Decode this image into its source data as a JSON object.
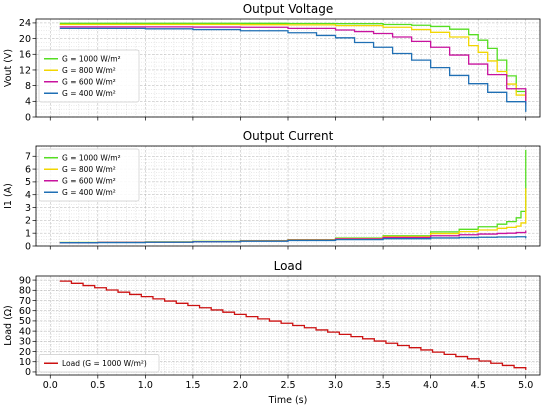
{
  "chart_data": [
    {
      "type": "line",
      "title": "Output Voltage",
      "xlabel": "",
      "ylabel": "Vout (V)",
      "xlim": [
        -0.15,
        5.15
      ],
      "ylim": [
        0,
        25
      ],
      "xticks": [
        0.0,
        0.5,
        1.0,
        1.5,
        2.0,
        2.5,
        3.0,
        3.5,
        4.0,
        4.5,
        5.0
      ],
      "yticks": [
        0,
        4,
        8,
        12,
        16,
        20,
        24
      ],
      "ytick_labels": [
        "0",
        "4",
        "8",
        "12",
        "16",
        "20",
        "24"
      ],
      "show_xtick_labels": false,
      "grid": true,
      "legend_position": "center-left",
      "series": [
        {
          "name": "G = 1000 W/m²",
          "color": "#55dd22",
          "x": [
            0.1,
            0.5,
            1.0,
            1.5,
            2.0,
            2.5,
            3.0,
            3.5,
            3.8,
            4.0,
            4.2,
            4.4,
            4.5,
            4.6,
            4.7,
            4.8,
            4.9,
            5.0
          ],
          "y": [
            23.9,
            23.9,
            23.9,
            23.9,
            23.9,
            23.85,
            23.8,
            23.6,
            23.4,
            23.1,
            22.4,
            21.0,
            19.6,
            17.5,
            14.5,
            10.5,
            6.5,
            3.5
          ]
        },
        {
          "name": "G = 800 W/m²",
          "color": "#f2d600",
          "x": [
            0.1,
            0.5,
            1.0,
            1.5,
            2.0,
            2.5,
            3.0,
            3.5,
            3.8,
            4.0,
            4.2,
            4.4,
            4.5,
            4.6,
            4.7,
            4.8,
            4.9,
            5.0
          ],
          "y": [
            23.6,
            23.6,
            23.6,
            23.6,
            23.55,
            23.5,
            23.3,
            22.9,
            22.3,
            21.6,
            20.4,
            18.2,
            16.5,
            14.3,
            11.6,
            8.4,
            5.6,
            3.5
          ]
        },
        {
          "name": "G = 600 W/m²",
          "color": "#c8129e",
          "x": [
            0.1,
            0.5,
            1.0,
            1.5,
            2.0,
            2.5,
            3.0,
            3.2,
            3.4,
            3.6,
            3.8,
            4.0,
            4.2,
            4.4,
            4.6,
            4.8,
            5.0
          ],
          "y": [
            23.0,
            23.0,
            23.0,
            22.95,
            22.9,
            22.6,
            22.2,
            21.8,
            21.3,
            20.4,
            19.3,
            17.8,
            15.8,
            13.5,
            10.8,
            7.2,
            3.2
          ]
        },
        {
          "name": "G = 400 W/m²",
          "color": "#1f6fb4",
          "x": [
            0.1,
            0.5,
            1.0,
            1.5,
            2.0,
            2.5,
            2.8,
            3.0,
            3.2,
            3.4,
            3.6,
            3.8,
            4.0,
            4.2,
            4.4,
            4.6,
            4.8,
            5.0
          ],
          "y": [
            22.6,
            22.6,
            22.5,
            22.3,
            22.0,
            21.5,
            20.8,
            20.2,
            19.0,
            17.8,
            16.2,
            14.5,
            12.6,
            10.6,
            8.5,
            6.3,
            3.9,
            1.3
          ]
        }
      ]
    },
    {
      "type": "line",
      "title": "Output Current",
      "xlabel": "",
      "ylabel": "I1 (A)",
      "xlim": [
        -0.15,
        5.15
      ],
      "ylim": [
        0,
        7.8
      ],
      "xticks": [
        0.0,
        0.5,
        1.0,
        1.5,
        2.0,
        2.5,
        3.0,
        3.5,
        4.0,
        4.5,
        5.0
      ],
      "yticks": [
        0,
        1,
        2,
        3,
        4,
        5,
        6,
        7
      ],
      "ytick_labels": [
        "0",
        "1",
        "2",
        "3",
        "4",
        "5",
        "6",
        "7"
      ],
      "show_xtick_labels": false,
      "grid": true,
      "legend_position": "upper-left",
      "series": [
        {
          "name": "G = 1000 W/m²",
          "color": "#55dd22",
          "x": [
            0.1,
            0.5,
            1.0,
            1.5,
            2.0,
            2.5,
            3.0,
            3.5,
            4.0,
            4.3,
            4.5,
            4.7,
            4.8,
            4.9,
            4.95,
            5.0
          ],
          "y": [
            0.27,
            0.29,
            0.32,
            0.36,
            0.42,
            0.5,
            0.62,
            0.8,
            1.1,
            1.3,
            1.5,
            1.7,
            1.9,
            2.2,
            2.7,
            7.5
          ]
        },
        {
          "name": "G = 800 W/m²",
          "color": "#f2d600",
          "x": [
            0.1,
            0.5,
            1.0,
            1.5,
            2.0,
            2.5,
            3.0,
            3.5,
            4.0,
            4.3,
            4.5,
            4.7,
            4.8,
            4.9,
            4.95,
            5.0
          ],
          "y": [
            0.27,
            0.29,
            0.31,
            0.35,
            0.4,
            0.48,
            0.58,
            0.74,
            0.97,
            1.12,
            1.25,
            1.38,
            1.45,
            1.55,
            1.8,
            4.5
          ]
        },
        {
          "name": "G = 600 W/m²",
          "color": "#c8129e",
          "x": [
            0.1,
            0.5,
            1.0,
            1.5,
            2.0,
            2.5,
            3.0,
            3.5,
            4.0,
            4.3,
            4.5,
            4.7,
            4.8,
            4.9,
            5.0
          ],
          "y": [
            0.26,
            0.28,
            0.3,
            0.34,
            0.39,
            0.46,
            0.55,
            0.67,
            0.8,
            0.88,
            0.93,
            0.98,
            1.0,
            1.05,
            1.2
          ]
        },
        {
          "name": "G = 400 W/m²",
          "color": "#1f6fb4",
          "x": [
            0.1,
            0.5,
            1.0,
            1.5,
            2.0,
            2.5,
            3.0,
            3.5,
            4.0,
            4.3,
            4.5,
            4.7,
            4.8,
            4.9,
            5.0
          ],
          "y": [
            0.26,
            0.27,
            0.29,
            0.33,
            0.37,
            0.43,
            0.5,
            0.57,
            0.63,
            0.66,
            0.68,
            0.7,
            0.7,
            0.72,
            0.6
          ]
        }
      ]
    },
    {
      "type": "line",
      "title": "Load",
      "xlabel": "Time (s)",
      "ylabel": "Load (Ω)",
      "xlim": [
        -0.15,
        5.15
      ],
      "ylim": [
        -3,
        94
      ],
      "xticks": [
        0.0,
        0.5,
        1.0,
        1.5,
        2.0,
        2.5,
        3.0,
        3.5,
        4.0,
        4.5,
        5.0
      ],
      "xtick_labels": [
        "0.0",
        "0.5",
        "1.0",
        "1.5",
        "2.0",
        "2.5",
        "3.0",
        "3.5",
        "4.0",
        "4.5",
        "5.0"
      ],
      "yticks": [
        0,
        10,
        20,
        30,
        40,
        50,
        60,
        70,
        80,
        90
      ],
      "ytick_labels": [
        "0",
        "10",
        "20",
        "30",
        "40",
        "50",
        "60",
        "70",
        "80",
        "90"
      ],
      "show_xtick_labels": true,
      "grid": true,
      "legend_position": "lower-left",
      "series": [
        {
          "name": "Load (G = 1000 W/m²)",
          "color": "#cc1111",
          "x": [
            0.1,
            5.0
          ],
          "y": [
            89,
            2
          ]
        }
      ]
    }
  ]
}
